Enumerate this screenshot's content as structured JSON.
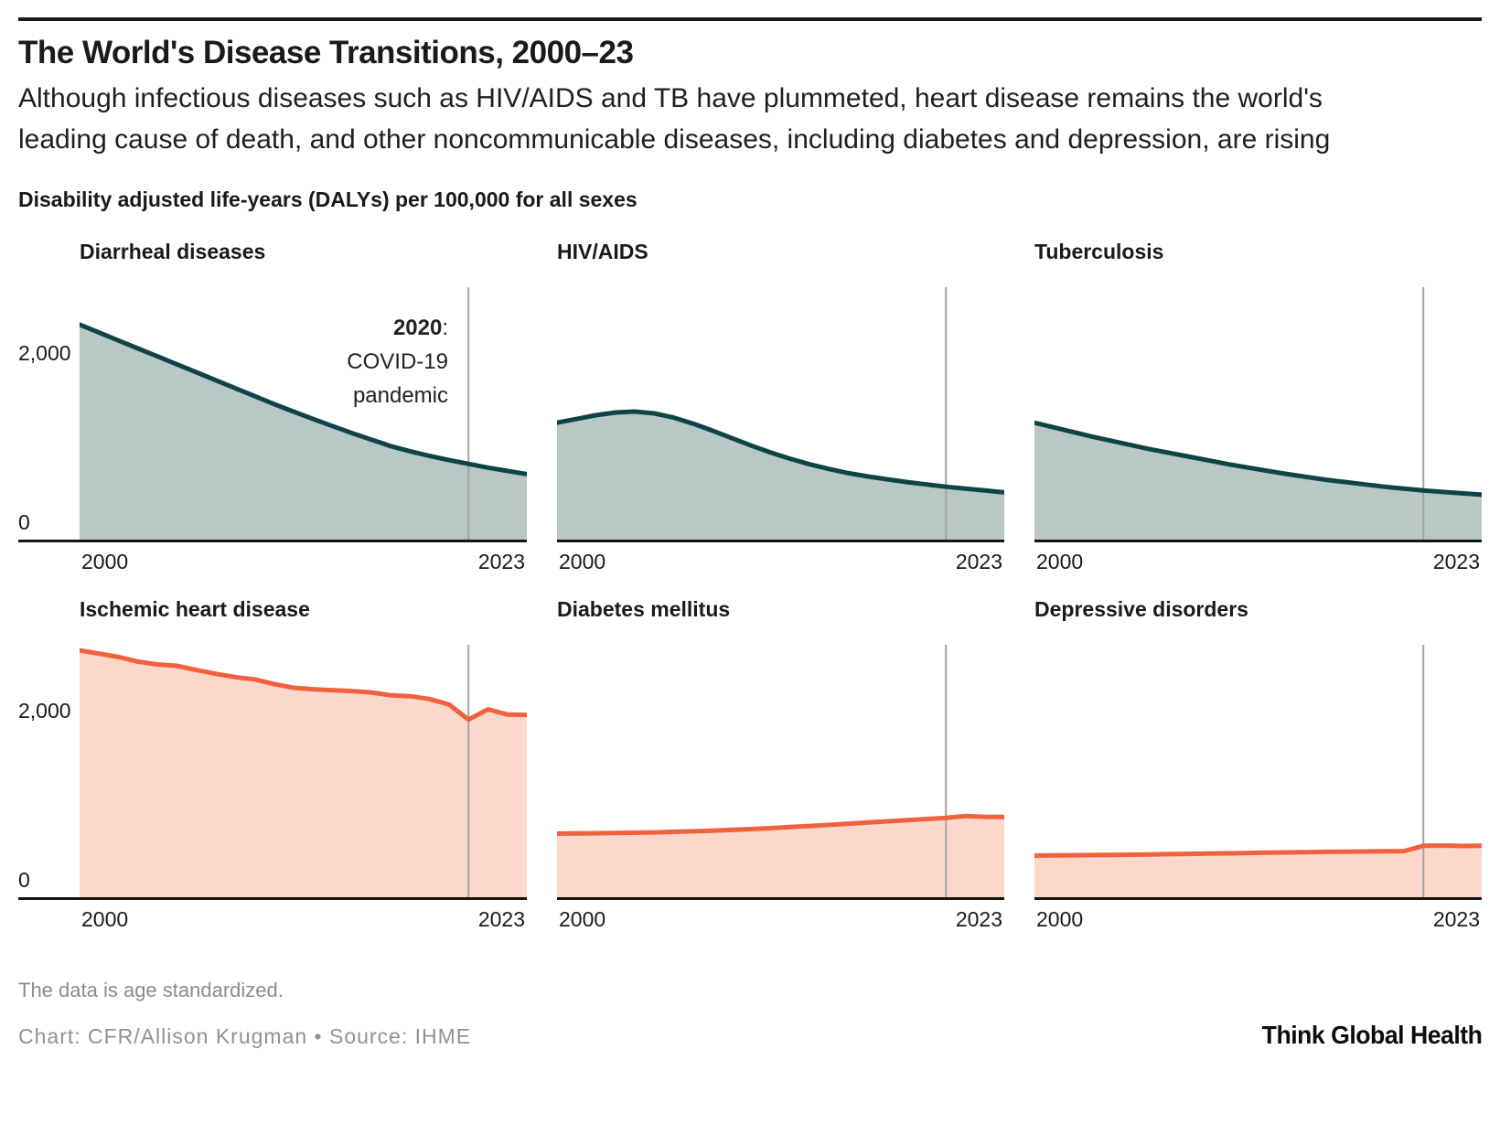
{
  "header": {
    "title": "The World's Disease Transitions, 2000–23",
    "subtitle": "Although infectious diseases such as HIV/AIDS and TB have plummeted, heart disease remains the world's leading cause of death, and other noncommunicable diseases, including diabetes and depression, are rising",
    "axis_note": "Disability adjusted life-years (DALYs) per 100,000 for all sexes"
  },
  "colors": {
    "declining_line": "#0f4447",
    "declining_fill": "#b9c8c5",
    "rising_line": "#f2613d",
    "rising_fill": "#fcd8cc",
    "event_line": "#a3a3a3",
    "axis_line": "#141414"
  },
  "annotation": {
    "year": "2020",
    "colon": ":",
    "line2": "COVID-19",
    "line3": "pandemic"
  },
  "axis": {
    "x_first": "2000",
    "x_last": "2023",
    "y_tick_top": "2,000",
    "y_tick_zero": "0"
  },
  "chart_data": [
    {
      "type": "area",
      "title": "Diarrheal diseases",
      "palette": "declining",
      "x": [
        2000,
        2001,
        2002,
        2003,
        2004,
        2005,
        2006,
        2007,
        2008,
        2009,
        2010,
        2011,
        2012,
        2013,
        2014,
        2015,
        2016,
        2017,
        2018,
        2019,
        2020,
        2021,
        2022,
        2023
      ],
      "values": [
        2300,
        2215,
        2130,
        2045,
        1960,
        1875,
        1790,
        1705,
        1620,
        1535,
        1450,
        1370,
        1290,
        1215,
        1140,
        1070,
        1000,
        945,
        895,
        850,
        810,
        770,
        735,
        700
      ],
      "ylim": [
        0,
        2700
      ],
      "yticks": [
        2000,
        0
      ],
      "event_year": 2020,
      "has_annotation": true,
      "xlabel_first": "2000",
      "xlabel_last": "2023"
    },
    {
      "type": "area",
      "title": "HIV/AIDS",
      "palette": "declining",
      "x": [
        2000,
        2001,
        2002,
        2003,
        2004,
        2005,
        2006,
        2007,
        2008,
        2009,
        2010,
        2011,
        2012,
        2013,
        2014,
        2015,
        2016,
        2017,
        2018,
        2019,
        2020,
        2021,
        2022,
        2023
      ],
      "values": [
        1250,
        1290,
        1330,
        1360,
        1370,
        1350,
        1305,
        1240,
        1165,
        1085,
        1005,
        930,
        865,
        805,
        755,
        710,
        675,
        645,
        615,
        590,
        565,
        545,
        525,
        505
      ],
      "ylim": [
        0,
        2700
      ],
      "yticks": [],
      "event_year": 2020,
      "has_annotation": false,
      "xlabel_first": "2000",
      "xlabel_last": "2023"
    },
    {
      "type": "area",
      "title": "Tuberculosis",
      "palette": "declining",
      "x": [
        2000,
        2001,
        2002,
        2003,
        2004,
        2005,
        2006,
        2007,
        2008,
        2009,
        2010,
        2011,
        2012,
        2013,
        2014,
        2015,
        2016,
        2017,
        2018,
        2019,
        2020,
        2021,
        2022,
        2023
      ],
      "values": [
        1250,
        1200,
        1150,
        1100,
        1055,
        1010,
        965,
        925,
        885,
        845,
        805,
        770,
        735,
        700,
        670,
        640,
        615,
        590,
        565,
        545,
        525,
        510,
        495,
        480
      ],
      "ylim": [
        0,
        2700
      ],
      "yticks": [],
      "event_year": 2020,
      "has_annotation": false,
      "xlabel_first": "2000",
      "xlabel_last": "2023"
    },
    {
      "type": "area",
      "title": "Ischemic heart disease",
      "palette": "rising",
      "x": [
        2000,
        2001,
        2002,
        2003,
        2004,
        2005,
        2006,
        2007,
        2008,
        2009,
        2010,
        2011,
        2012,
        2013,
        2014,
        2015,
        2016,
        2017,
        2018,
        2019,
        2020,
        2021,
        2022,
        2023
      ],
      "values": [
        2640,
        2605,
        2570,
        2520,
        2490,
        2475,
        2430,
        2390,
        2355,
        2330,
        2280,
        2240,
        2225,
        2215,
        2205,
        2190,
        2160,
        2150,
        2120,
        2060,
        1900,
        2010,
        1955,
        1950
      ],
      "ylim": [
        0,
        2700
      ],
      "yticks": [
        2000,
        0
      ],
      "event_year": 2020,
      "has_annotation": false,
      "xlabel_first": "2000",
      "xlabel_last": "2023"
    },
    {
      "type": "area",
      "title": "Diabetes mellitus",
      "palette": "rising",
      "x": [
        2000,
        2001,
        2002,
        2003,
        2004,
        2005,
        2006,
        2007,
        2008,
        2009,
        2010,
        2011,
        2012,
        2013,
        2014,
        2015,
        2016,
        2017,
        2018,
        2019,
        2020,
        2021,
        2022,
        2023
      ],
      "values": [
        680,
        682,
        684,
        687,
        690,
        694,
        699,
        705,
        712,
        720,
        729,
        739,
        750,
        762,
        774,
        787,
        800,
        812,
        824,
        836,
        848,
        868,
        860,
        858
      ],
      "ylim": [
        0,
        2700
      ],
      "yticks": [],
      "event_year": 2020,
      "has_annotation": false,
      "xlabel_first": "2000",
      "xlabel_last": "2023"
    },
    {
      "type": "area",
      "title": "Depressive disorders",
      "palette": "rising",
      "x": [
        2000,
        2001,
        2002,
        2003,
        2004,
        2005,
        2006,
        2007,
        2008,
        2009,
        2010,
        2011,
        2012,
        2013,
        2014,
        2015,
        2016,
        2017,
        2018,
        2019,
        2020,
        2021,
        2022,
        2023
      ],
      "values": [
        445,
        447,
        449,
        451,
        453,
        455,
        458,
        461,
        464,
        467,
        470,
        473,
        476,
        479,
        482,
        485,
        487,
        489,
        491,
        493,
        550,
        553,
        548,
        551
      ],
      "ylim": [
        0,
        2700
      ],
      "yticks": [],
      "event_year": 2020,
      "has_annotation": false,
      "xlabel_first": "2000",
      "xlabel_last": "2023"
    }
  ],
  "footer": {
    "note": "The data is age standardized.",
    "credit": "Chart: CFR/Allison Krugman • Source: IHME",
    "logo": "Think Global Health"
  }
}
